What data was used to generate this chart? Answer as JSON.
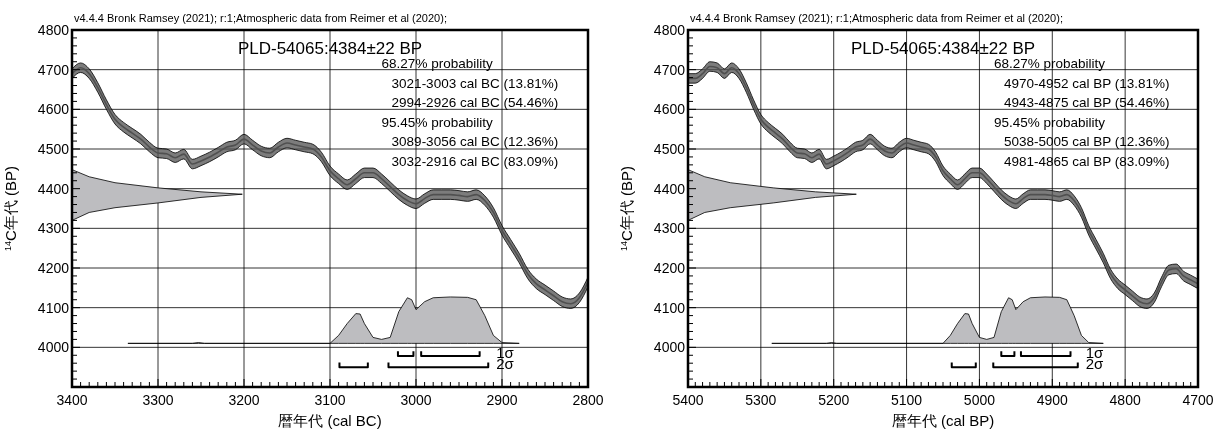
{
  "chart_data": [
    {
      "type": "line",
      "subtitle": "v4.4.4 Bronk Ramsey (2021); r:1;Atmospheric data from Reimer et al (2020);",
      "title": "PLD-54065:4384±22 BP",
      "xlabel": "暦年代 (cal BC)",
      "ylabel": "$^{14}$C年代 (BP)",
      "annotations": [
        "68.27% probability",
        "3021-3003 cal BC (13.81%)",
        "2994-2926 cal BC (54.46%)",
        "95.45% probability",
        "3089-3056 cal BC (12.36%)",
        "3032-2916 cal BC (83.09%)"
      ],
      "xlim": [
        3400,
        2800
      ],
      "ylim": [
        3900,
        4800
      ],
      "grid": true,
      "xticks": [
        3400,
        3300,
        3200,
        3100,
        3000,
        2900,
        2800,
        {
          "value": 3390,
          "label": null
        },
        {
          "value": 3380,
          "label": null
        },
        {
          "value": 3370,
          "label": null
        },
        {
          "value": 3360,
          "label": null
        },
        {
          "value": 3350,
          "label": null
        },
        {
          "value": 3340,
          "label": null
        },
        {
          "value": 3330,
          "label": null
        },
        {
          "value": 3320,
          "label": null
        },
        {
          "value": 3310,
          "label": null
        },
        {
          "value": 3290,
          "label": null
        },
        {
          "value": 3280,
          "label": null
        },
        {
          "value": 3270,
          "label": null
        },
        {
          "value": 3260,
          "label": null
        },
        {
          "value": 3250,
          "label": null
        },
        {
          "value": 3240,
          "label": null
        },
        {
          "value": 3230,
          "label": null
        },
        {
          "value": 3220,
          "label": null
        },
        {
          "value": 3210,
          "label": null
        },
        {
          "value": 3190,
          "label": null
        },
        {
          "value": 3180,
          "label": null
        },
        {
          "value": 3170,
          "label": null
        },
        {
          "value": 3160,
          "label": null
        },
        {
          "value": 3150,
          "label": null
        },
        {
          "value": 3140,
          "label": null
        },
        {
          "value": 3130,
          "label": null
        },
        {
          "value": 3120,
          "label": null
        },
        {
          "value": 3110,
          "label": null
        },
        {
          "value": 3090,
          "label": null
        },
        {
          "value": 3080,
          "label": null
        },
        {
          "value": 3070,
          "label": null
        },
        {
          "value": 3060,
          "label": null
        },
        {
          "value": 3050,
          "label": null
        },
        {
          "value": 3040,
          "label": null
        },
        {
          "value": 3030,
          "label": null
        },
        {
          "value": 3020,
          "label": null
        },
        {
          "value": 3010,
          "label": null
        },
        {
          "value": 2990,
          "label": null
        },
        {
          "value": 2980,
          "label": null
        },
        {
          "value": 2970,
          "label": null
        },
        {
          "value": 2960,
          "label": null
        },
        {
          "value": 2950,
          "label": null
        },
        {
          "value": 2940,
          "label": null
        },
        {
          "value": 2930,
          "label": null
        },
        {
          "value": 2920,
          "label": null
        },
        {
          "value": 2910,
          "label": null
        },
        {
          "value": 2890,
          "label": null
        },
        {
          "value": 2880,
          "label": null
        },
        {
          "value": 2870,
          "label": null
        },
        {
          "value": 2860,
          "label": null
        },
        {
          "value": 2850,
          "label": null
        },
        {
          "value": 2840,
          "label": null
        },
        {
          "value": 2830,
          "label": null
        },
        {
          "value": 2820,
          "label": null
        },
        {
          "value": 2810,
          "label": null
        }
      ],
      "yticks": [
        4000,
        4100,
        4200,
        4300,
        4400,
        4500,
        4600,
        4700,
        4800,
        {
          "value": 3920,
          "label": null
        },
        {
          "value": 3940,
          "label": null
        },
        {
          "value": 3960,
          "label": null
        },
        {
          "value": 3980,
          "label": null
        },
        {
          "value": 4020,
          "label": null
        },
        {
          "value": 4040,
          "label": null
        },
        {
          "value": 4060,
          "label": null
        },
        {
          "value": 4080,
          "label": null
        },
        {
          "value": 4120,
          "label": null
        },
        {
          "value": 4140,
          "label": null
        },
        {
          "value": 4160,
          "label": null
        },
        {
          "value": 4180,
          "label": null
        },
        {
          "value": 4220,
          "label": null
        },
        {
          "value": 4240,
          "label": null
        },
        {
          "value": 4260,
          "label": null
        },
        {
          "value": 4280,
          "label": null
        },
        {
          "value": 4320,
          "label": null
        },
        {
          "value": 4340,
          "label": null
        },
        {
          "value": 4360,
          "label": null
        },
        {
          "value": 4380,
          "label": null
        },
        {
          "value": 4420,
          "label": null
        },
        {
          "value": 4440,
          "label": null
        },
        {
          "value": 4460,
          "label": null
        },
        {
          "value": 4480,
          "label": null
        },
        {
          "value": 4520,
          "label": null
        },
        {
          "value": 4540,
          "label": null
        },
        {
          "value": 4560,
          "label": null
        },
        {
          "value": 4580,
          "label": null
        },
        {
          "value": 4620,
          "label": null
        },
        {
          "value": 4640,
          "label": null
        },
        {
          "value": 4660,
          "label": null
        },
        {
          "value": 4680,
          "label": null
        },
        {
          "value": 4720,
          "label": null
        },
        {
          "value": 4740,
          "label": null
        },
        {
          "value": 4760,
          "label": null
        },
        {
          "value": 4780,
          "label": null
        }
      ],
      "series": [
        {
          "type": "line",
          "color": "#505050",
          "x": [
            3400,
            3390,
            3380,
            3370,
            3360,
            3350,
            3340,
            3330,
            3320,
            3310,
            3300,
            3290,
            3280,
            3270,
            3260,
            3250,
            3240,
            3230,
            3220,
            3210,
            3200,
            3190,
            3180,
            3170,
            3160,
            3150,
            3140,
            3130,
            3120,
            3110,
            3100,
            3090,
            3080,
            3070,
            3060,
            3050,
            3040,
            3030,
            3020,
            3010,
            3000,
            2990,
            2980,
            2970,
            2960,
            2950,
            2940,
            2930,
            2920,
            2910,
            2900,
            2890,
            2880,
            2870,
            2860,
            2850,
            2840,
            2830,
            2820,
            2810,
            2800
          ],
          "values": [
            4690,
            4705,
            4690,
            4655,
            4612,
            4575,
            4555,
            4540,
            4525,
            4505,
            4490,
            4488,
            4478,
            4487,
            4462,
            4470,
            4480,
            4492,
            4505,
            4510,
            4525,
            4510,
            4495,
            4490,
            4505,
            4515,
            4510,
            4505,
            4500,
            4480,
            4445,
            4425,
            4410,
            4425,
            4440,
            4440,
            4425,
            4405,
            4385,
            4370,
            4362,
            4375,
            4385,
            4385,
            4385,
            4383,
            4380,
            4385,
            4370,
            4340,
            4295,
            4260,
            4225,
            4185,
            4160,
            4145,
            4130,
            4115,
            4110,
            4125,
            4165
          ],
          "lower": [
            4678,
            4693,
            4678,
            4643,
            4600,
            4563,
            4543,
            4528,
            4513,
            4493,
            4478,
            4476,
            4466,
            4475,
            4450,
            4458,
            4468,
            4480,
            4493,
            4498,
            4513,
            4498,
            4483,
            4478,
            4493,
            4503,
            4498,
            4493,
            4488,
            4468,
            4433,
            4413,
            4398,
            4413,
            4428,
            4428,
            4413,
            4393,
            4373,
            4358,
            4350,
            4363,
            4373,
            4373,
            4373,
            4371,
            4368,
            4373,
            4358,
            4328,
            4283,
            4248,
            4213,
            4173,
            4148,
            4133,
            4118,
            4103,
            4098,
            4113,
            4153
          ],
          "upper": [
            4702,
            4717,
            4702,
            4667,
            4624,
            4587,
            4567,
            4552,
            4537,
            4517,
            4502,
            4500,
            4490,
            4499,
            4474,
            4482,
            4492,
            4504,
            4517,
            4522,
            4537,
            4522,
            4507,
            4502,
            4517,
            4527,
            4522,
            4517,
            4512,
            4492,
            4457,
            4437,
            4422,
            4437,
            4452,
            4452,
            4437,
            4417,
            4397,
            4382,
            4374,
            4387,
            4397,
            4397,
            4397,
            4395,
            4392,
            4397,
            4382,
            4352,
            4307,
            4272,
            4237,
            4197,
            4172,
            4157,
            4142,
            4127,
            4122,
            4137,
            4177
          ]
        },
        {
          "type": "area",
          "color": "#bdbdc0",
          "x": [
            3400,
            3380,
            3350,
            3300,
            3250,
            3202,
            3250,
            3300,
            3350,
            3380,
            3400
          ],
          "values": [
            4448,
            4430,
            4415,
            4402,
            4392,
            4386,
            4378,
            4364,
            4352,
            4340,
            4320
          ]
        },
        {
          "type": "area",
          "color": "#bdbdc0",
          "x": [
            3335,
            3260,
            3253,
            3246,
            3100,
            3090,
            3080,
            3070,
            3065,
            3060,
            3050,
            3040,
            3030,
            3020,
            3010,
            3005,
            3000,
            2990,
            2980,
            2960,
            2940,
            2930,
            2920,
            2910,
            2900,
            2880
          ],
          "values": [
            4010,
            4010,
            4012,
            4010,
            4010,
            4030,
            4060,
            4085,
            4084,
            4060,
            4025,
            4020,
            4025,
            4090,
            4125,
            4120,
            4095,
            4115,
            4125,
            4127,
            4126,
            4120,
            4080,
            4030,
            4012,
            4010
          ]
        },
        {
          "type": "line",
          "name": "1σ",
          "color": "#000000",
          "x": [
            3021,
            3021,
            3003,
            3003,
            3000,
            2994,
            2994,
            2926,
            2926
          ],
          "values": [
            3990,
            3978,
            3978,
            3990,
            null,
            3990,
            3978,
            3978,
            3990
          ]
        },
        {
          "type": "line",
          "name": "2σ",
          "color": "#000000",
          "x": [
            3089,
            3089,
            3056,
            3056,
            3040,
            3032,
            3032,
            2916,
            2916
          ],
          "values": [
            3962,
            3950,
            3950,
            3962,
            null,
            3962,
            3950,
            3950,
            3962
          ]
        }
      ]
    },
    {
      "type": "line",
      "subtitle": "v4.4.4 Bronk Ramsey (2021); r:1;Atmospheric data from Reimer et al (2020);",
      "title": "PLD-54065:4384±22 BP",
      "xlabel": "暦年代 (cal BP)",
      "ylabel": "$^{14}$C年代 (BP)",
      "annotations": [
        "68.27% probability",
        "4970-4952 cal BP (13.81%)",
        "4943-4875 cal BP (54.46%)",
        "95.45% probability",
        "5038-5005 cal BP (12.36%)",
        "4981-4865 cal BP (83.09%)"
      ],
      "xlim": [
        5400,
        4700
      ],
      "ylim": [
        3900,
        4800
      ],
      "grid": true,
      "xticks": [
        5400,
        5300,
        5200,
        5100,
        5000,
        4900,
        4800,
        4700,
        {
          "value": 5390,
          "label": null
        },
        {
          "value": 5380,
          "label": null
        },
        {
          "value": 5370,
          "label": null
        },
        {
          "value": 5360,
          "label": null
        },
        {
          "value": 5350,
          "label": null
        },
        {
          "value": 5340,
          "label": null
        },
        {
          "value": 5330,
          "label": null
        },
        {
          "value": 5320,
          "label": null
        },
        {
          "value": 5310,
          "label": null
        },
        {
          "value": 5290,
          "label": null
        },
        {
          "value": 5280,
          "label": null
        },
        {
          "value": 5270,
          "label": null
        },
        {
          "value": 5260,
          "label": null
        },
        {
          "value": 5250,
          "label": null
        },
        {
          "value": 5240,
          "label": null
        },
        {
          "value": 5230,
          "label": null
        },
        {
          "value": 5220,
          "label": null
        },
        {
          "value": 5210,
          "label": null
        },
        {
          "value": 5190,
          "label": null
        },
        {
          "value": 5180,
          "label": null
        },
        {
          "value": 5170,
          "label": null
        },
        {
          "value": 5160,
          "label": null
        },
        {
          "value": 5150,
          "label": null
        },
        {
          "value": 5140,
          "label": null
        },
        {
          "value": 5130,
          "label": null
        },
        {
          "value": 5120,
          "label": null
        },
        {
          "value": 5110,
          "label": null
        },
        {
          "value": 5090,
          "label": null
        },
        {
          "value": 5080,
          "label": null
        },
        {
          "value": 5070,
          "label": null
        },
        {
          "value": 5060,
          "label": null
        },
        {
          "value": 5050,
          "label": null
        },
        {
          "value": 5040,
          "label": null
        },
        {
          "value": 5030,
          "label": null
        },
        {
          "value": 5020,
          "label": null
        },
        {
          "value": 5010,
          "label": null
        },
        {
          "value": 4990,
          "label": null
        },
        {
          "value": 4980,
          "label": null
        },
        {
          "value": 4970,
          "label": null
        },
        {
          "value": 4960,
          "label": null
        },
        {
          "value": 4950,
          "label": null
        },
        {
          "value": 4940,
          "label": null
        },
        {
          "value": 4930,
          "label": null
        },
        {
          "value": 4920,
          "label": null
        },
        {
          "value": 4910,
          "label": null
        },
        {
          "value": 4890,
          "label": null
        },
        {
          "value": 4880,
          "label": null
        },
        {
          "value": 4870,
          "label": null
        },
        {
          "value": 4860,
          "label": null
        },
        {
          "value": 4850,
          "label": null
        },
        {
          "value": 4840,
          "label": null
        },
        {
          "value": 4830,
          "label": null
        },
        {
          "value": 4820,
          "label": null
        },
        {
          "value": 4810,
          "label": null
        },
        {
          "value": 4790,
          "label": null
        },
        {
          "value": 4780,
          "label": null
        },
        {
          "value": 4770,
          "label": null
        },
        {
          "value": 4760,
          "label": null
        },
        {
          "value": 4750,
          "label": null
        },
        {
          "value": 4740,
          "label": null
        },
        {
          "value": 4730,
          "label": null
        },
        {
          "value": 4720,
          "label": null
        },
        {
          "value": 4710,
          "label": null
        }
      ],
      "yticks": [
        4000,
        4100,
        4200,
        4300,
        4400,
        4500,
        4600,
        4700,
        4800,
        {
          "value": 3920,
          "label": null
        },
        {
          "value": 3940,
          "label": null
        },
        {
          "value": 3960,
          "label": null
        },
        {
          "value": 3980,
          "label": null
        },
        {
          "value": 4020,
          "label": null
        },
        {
          "value": 4040,
          "label": null
        },
        {
          "value": 4060,
          "label": null
        },
        {
          "value": 4080,
          "label": null
        },
        {
          "value": 4120,
          "label": null
        },
        {
          "value": 4140,
          "label": null
        },
        {
          "value": 4160,
          "label": null
        },
        {
          "value": 4180,
          "label": null
        },
        {
          "value": 4220,
          "label": null
        },
        {
          "value": 4240,
          "label": null
        },
        {
          "value": 4260,
          "label": null
        },
        {
          "value": 4280,
          "label": null
        },
        {
          "value": 4320,
          "label": null
        },
        {
          "value": 4340,
          "label": null
        },
        {
          "value": 4360,
          "label": null
        },
        {
          "value": 4380,
          "label": null
        },
        {
          "value": 4420,
          "label": null
        },
        {
          "value": 4440,
          "label": null
        },
        {
          "value": 4460,
          "label": null
        },
        {
          "value": 4480,
          "label": null
        },
        {
          "value": 4520,
          "label": null
        },
        {
          "value": 4540,
          "label": null
        },
        {
          "value": 4560,
          "label": null
        },
        {
          "value": 4580,
          "label": null
        },
        {
          "value": 4620,
          "label": null
        },
        {
          "value": 4640,
          "label": null
        },
        {
          "value": 4660,
          "label": null
        },
        {
          "value": 4680,
          "label": null
        },
        {
          "value": 4720,
          "label": null
        },
        {
          "value": 4740,
          "label": null
        },
        {
          "value": 4760,
          "label": null
        },
        {
          "value": 4780,
          "label": null
        }
      ],
      "series": [
        {
          "type": "line",
          "color": "#505050",
          "x": [
            5400,
            5390,
            5380,
            5370,
            5360,
            5350,
            5340,
            5330,
            5320,
            5310,
            5300,
            5290,
            5280,
            5270,
            5260,
            5250,
            5240,
            5230,
            5220,
            5210,
            5200,
            5190,
            5180,
            5170,
            5160,
            5150,
            5140,
            5130,
            5120,
            5110,
            5100,
            5090,
            5080,
            5070,
            5060,
            5050,
            5040,
            5030,
            5020,
            5010,
            5000,
            4990,
            4980,
            4970,
            4960,
            4950,
            4940,
            4930,
            4920,
            4910,
            4900,
            4890,
            4880,
            4870,
            4860,
            4850,
            4840,
            4830,
            4820,
            4810,
            4800,
            4790,
            4780,
            4770,
            4760,
            4750,
            4740,
            4730,
            4720,
            4710,
            4700
          ],
          "values": [
            4678,
            4678,
            4690,
            4708,
            4705,
            4690,
            4705,
            4690,
            4655,
            4612,
            4575,
            4555,
            4540,
            4525,
            4505,
            4490,
            4488,
            4478,
            4487,
            4462,
            4470,
            4480,
            4492,
            4505,
            4510,
            4525,
            4510,
            4495,
            4490,
            4505,
            4515,
            4510,
            4505,
            4500,
            4480,
            4445,
            4425,
            4410,
            4425,
            4440,
            4440,
            4425,
            4405,
            4385,
            4370,
            4362,
            4375,
            4385,
            4385,
            4385,
            4383,
            4380,
            4385,
            4370,
            4340,
            4295,
            4260,
            4225,
            4185,
            4160,
            4145,
            4130,
            4115,
            4110,
            4125,
            4165,
            4195,
            4198,
            4180,
            4170,
            4160
          ],
          "lower": [
            4666,
            4666,
            4678,
            4696,
            4693,
            4678,
            4693,
            4678,
            4643,
            4600,
            4563,
            4543,
            4528,
            4513,
            4493,
            4478,
            4476,
            4466,
            4475,
            4450,
            4458,
            4468,
            4480,
            4493,
            4498,
            4513,
            4498,
            4483,
            4478,
            4493,
            4503,
            4498,
            4493,
            4488,
            4468,
            4433,
            4413,
            4398,
            4413,
            4428,
            4428,
            4413,
            4393,
            4373,
            4358,
            4350,
            4363,
            4373,
            4373,
            4373,
            4371,
            4368,
            4373,
            4358,
            4328,
            4283,
            4248,
            4213,
            4173,
            4148,
            4133,
            4118,
            4103,
            4098,
            4113,
            4153,
            4183,
            4186,
            4168,
            4158,
            4148
          ],
          "upper": [
            4690,
            4690,
            4702,
            4720,
            4717,
            4702,
            4717,
            4702,
            4667,
            4624,
            4587,
            4567,
            4552,
            4537,
            4517,
            4502,
            4500,
            4490,
            4499,
            4474,
            4482,
            4492,
            4504,
            4517,
            4522,
            4537,
            4522,
            4507,
            4502,
            4517,
            4527,
            4522,
            4517,
            4512,
            4492,
            4457,
            4437,
            4422,
            4437,
            4452,
            4452,
            4437,
            4417,
            4397,
            4382,
            4374,
            4387,
            4397,
            4397,
            4397,
            4395,
            4392,
            4397,
            4382,
            4352,
            4307,
            4272,
            4237,
            4197,
            4172,
            4157,
            4142,
            4127,
            4122,
            4137,
            4177,
            4207,
            4210,
            4192,
            4182,
            4172
          ]
        },
        {
          "type": "area",
          "color": "#bdbdc0",
          "x": [
            5400,
            5377,
            5342,
            5283,
            5225,
            5169,
            5225,
            5283,
            5342,
            5377,
            5400
          ],
          "values": [
            4448,
            4430,
            4415,
            4402,
            4392,
            4386,
            4378,
            4364,
            4352,
            4340,
            4320
          ]
        },
        {
          "type": "area",
          "color": "#bdbdc0",
          "x": [
            5285,
            5210,
            5203,
            5196,
            5050,
            5040,
            5030,
            5020,
            5015,
            5010,
            5000,
            4990,
            4980,
            4970,
            4960,
            4955,
            4950,
            4940,
            4930,
            4910,
            4890,
            4880,
            4870,
            4860,
            4850,
            4830
          ],
          "values": [
            4010,
            4010,
            4012,
            4010,
            4010,
            4030,
            4060,
            4085,
            4084,
            4060,
            4025,
            4020,
            4025,
            4090,
            4125,
            4120,
            4095,
            4115,
            4125,
            4127,
            4126,
            4120,
            4080,
            4030,
            4012,
            4010
          ]
        },
        {
          "type": "line",
          "name": "1σ",
          "color": "#000000",
          "x": [
            4970,
            4970,
            4952,
            4952,
            4948,
            4943,
            4943,
            4875,
            4875
          ],
          "values": [
            3990,
            3978,
            3978,
            3990,
            null,
            3990,
            3978,
            3978,
            3990
          ]
        },
        {
          "type": "line",
          "name": "2σ",
          "color": "#000000",
          "x": [
            5038,
            5038,
            5005,
            5005,
            4990,
            4981,
            4981,
            4865,
            4865
          ],
          "values": [
            3962,
            3950,
            3950,
            3962,
            null,
            3962,
            3950,
            3950,
            3962
          ]
        }
      ]
    }
  ]
}
